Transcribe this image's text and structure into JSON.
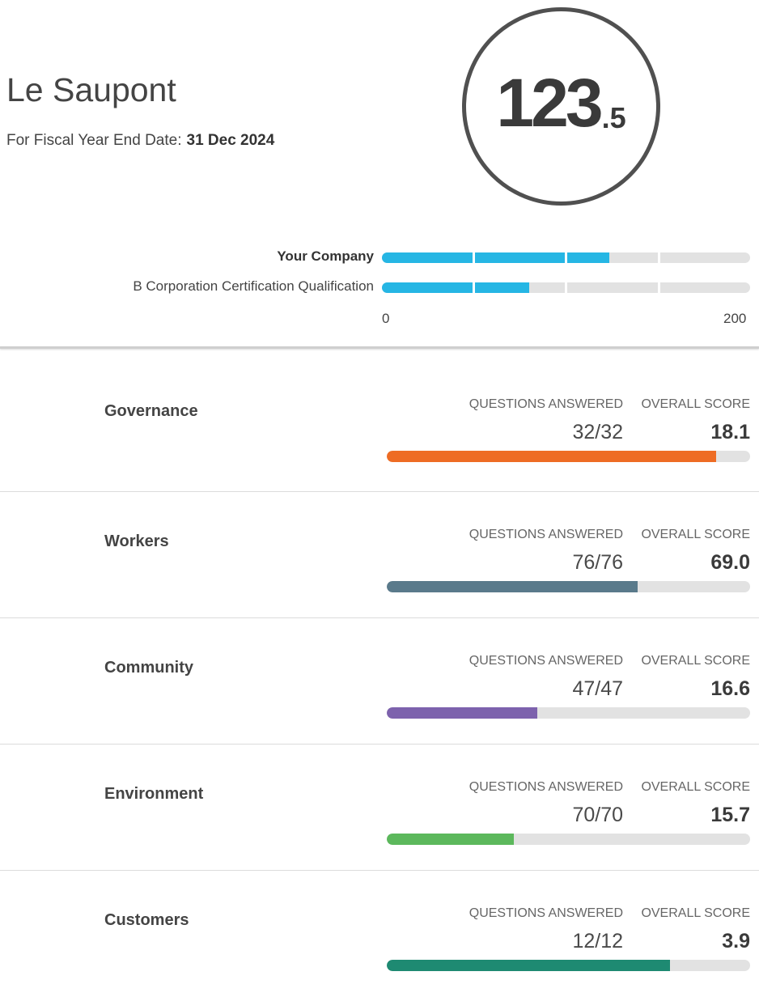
{
  "company": {
    "name": "Le Saupont",
    "fiscal_label": "For Fiscal Year End Date:",
    "fiscal_date": "31 Dec 2024"
  },
  "score": {
    "main": "123",
    "decimal": ".5"
  },
  "comparison": {
    "rows": [
      {
        "label": "Your Company",
        "bold": true,
        "value": 123.5
      },
      {
        "label": "B Corporation Certification Qualification",
        "bold": false,
        "value": 80
      }
    ],
    "axis_min": "0",
    "axis_max": "200",
    "max_value": 200,
    "fill_color": "#26b6e4"
  },
  "columns": {
    "answered": "QUESTIONS ANSWERED",
    "score": "OVERALL SCORE"
  },
  "categories": [
    {
      "name": "Governance",
      "answered": "32/32",
      "score": "18.1",
      "fill": 0.907,
      "color": "#ee6c24"
    },
    {
      "name": "Workers",
      "answered": "76/76",
      "score": "69.0",
      "fill": 0.69,
      "color": "#5a7a8b"
    },
    {
      "name": "Community",
      "answered": "47/47",
      "score": "16.6",
      "fill": 0.415,
      "color": "#7d62ad"
    },
    {
      "name": "Environment",
      "answered": "70/70",
      "score": "15.7",
      "fill": 0.35,
      "color": "#5cb85c"
    },
    {
      "name": "Customers",
      "answered": "12/12",
      "score": "3.9",
      "fill": 0.78,
      "color": "#1e8a72"
    }
  ]
}
